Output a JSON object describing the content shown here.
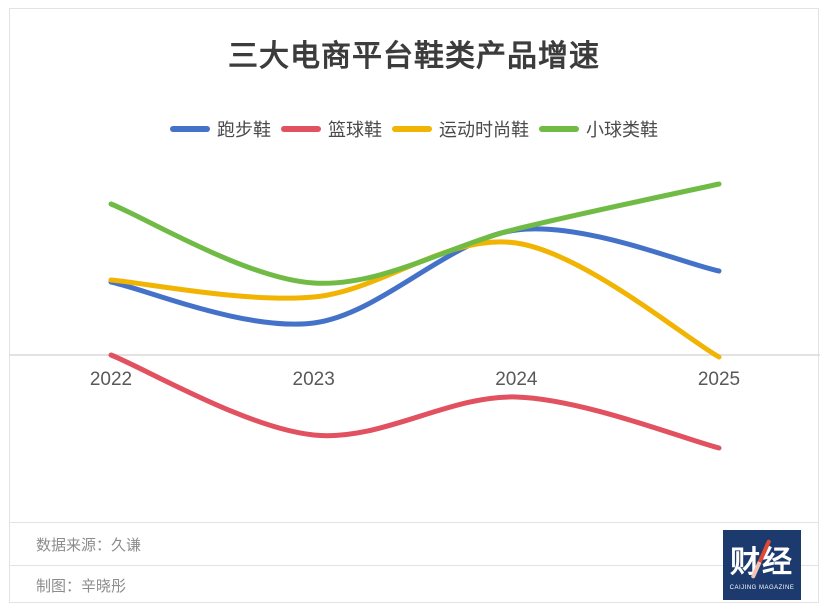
{
  "title": "三大电商平台鞋类产品增速",
  "chart_data": {
    "type": "line",
    "smooth": true,
    "legend_position": "top",
    "grid": "baseline-only",
    "x_labels": [
      "2022",
      "2023",
      "2024",
      "2025"
    ],
    "y_axis": {
      "baseline_value": 0,
      "labels_visible": false,
      "unit": "% growth (estimated; no y-axis labels shown in chart)"
    },
    "series": [
      {
        "name": "跑步鞋",
        "color": "#4472c8",
        "values": [
          14.6,
          6.4,
          25.0,
          16.8
        ]
      },
      {
        "name": "篮球鞋",
        "color": "#e15160",
        "values": [
          0.0,
          -16.0,
          -8.4,
          -18.6
        ]
      },
      {
        "name": "运动时尚鞋",
        "color": "#f1b403",
        "values": [
          15.0,
          11.6,
          22.4,
          -0.4
        ]
      },
      {
        "name": "小球类鞋",
        "color": "#6fbb45",
        "values": [
          30.2,
          14.4,
          25.2,
          34.2
        ]
      }
    ]
  },
  "footer": {
    "source_label": "数据来源：久谦",
    "credit_label": "制图：辛晓彤"
  },
  "logo": {
    "text": "财经",
    "subtext": "CAIJING MAGAZINE"
  },
  "colors": {
    "axis_line": "#d9d9d9",
    "card_border": "#e3e3e3",
    "title_text": "#3c3c3c",
    "tick_text": "#595959",
    "footer_text": "#8c8c8c",
    "logo_bg": "#1c3a6d",
    "logo_slash": "#e04a32"
  }
}
